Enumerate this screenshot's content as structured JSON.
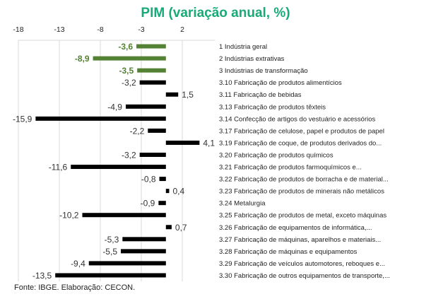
{
  "chart_data": {
    "type": "bar",
    "orientation": "horizontal",
    "title": "PIM (variação anual, %)",
    "source": "Fonte: IBGE. Elaboração: CECON.",
    "xlim": [
      -18,
      6
    ],
    "xticks": [
      -18,
      -13,
      -8,
      -3,
      2
    ],
    "grid": true,
    "highlight_color": "#548235",
    "default_color": "#000000",
    "categories": [
      "1 Indústria geral",
      "2 Indústrias extrativas",
      "3 Indústrias de transformação",
      "3.10 Fabricação de produtos alimentícios",
      "3.11 Fabricação de bebidas",
      "3.13 Fabricação de produtos têxteis",
      "3.14 Confecção de artigos do vestuário e acessórios",
      "3.17 Fabricação de celulose, papel e produtos de papel",
      "3.19 Fabricação de coque, de produtos derivados do...",
      "3.20 Fabricação de produtos químicos",
      "3.21 Fabricação de produtos farmoquímicos e...",
      "3.22 Fabricação de produtos de borracha e de material...",
      "3.23 Fabricação de produtos de minerais não metálicos",
      "3.24 Metalurgia",
      "3.25 Fabricação de produtos de metal, exceto máquinas",
      "3.26 Fabricação de equipamentos de informática,...",
      "3.27 Fabricação de máquinas, aparelhos e materiais...",
      "3.28 Fabricação de máquinas e equipamentos",
      "3.29 Fabricação de veículos automotores, reboques e...",
      "3.30 Fabricação de outros equipamentos de transporte,..."
    ],
    "values": [
      -3.6,
      -8.9,
      -3.5,
      -3.2,
      1.5,
      -4.9,
      -15.9,
      -2.2,
      4.1,
      -3.2,
      -11.6,
      -0.8,
      0.4,
      -0.9,
      -10.2,
      0.7,
      -5.3,
      -5.5,
      -9.4,
      -13.5
    ],
    "labels": [
      "-3,6",
      "-8,9",
      "-3,5",
      "-3,2",
      "1,5",
      "-4,9",
      "-15,9",
      "-2,2",
      "4,1",
      "-3,2",
      "-11,6",
      "-0,8",
      "0,4",
      "-0,9",
      "-10,2",
      "0,7",
      "-5,3",
      "-5,5",
      "-9,4",
      "-13,5"
    ],
    "highlighted": [
      0,
      1,
      2
    ]
  }
}
